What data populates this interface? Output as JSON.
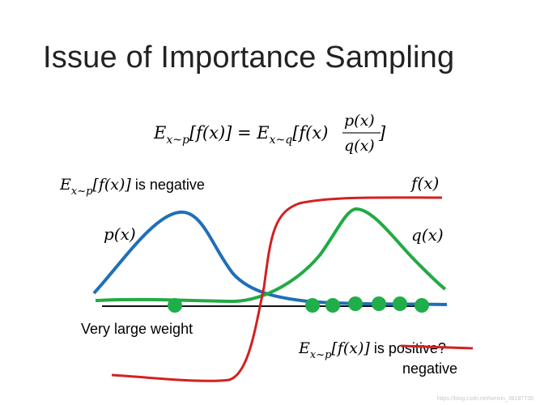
{
  "slide": {
    "title": "Issue of Importance Sampling",
    "equation": {
      "lhs_E": "E",
      "lhs_sub": "x~p",
      "lhs_body": "[f(x)] = ",
      "rhs_E": "E",
      "rhs_sub": "x~q",
      "rhs_body": "[f(x)",
      "frac_num": "p(x)",
      "frac_den": "q(x)",
      "rhs_close": "]"
    },
    "label_top": {
      "E": "E",
      "sub": "x~p",
      "body": "[f(x)]",
      "text": " is negative"
    },
    "label_fx": "f(x)",
    "label_px": "p(x)",
    "label_qx": "q(x)",
    "label_weight": "Very large weight",
    "label_bottom": {
      "E": "E",
      "sub": "x~p",
      "body": "[f(x)]",
      "text_is": " is ",
      "struck": "positive?",
      "correction": "negative"
    },
    "colors": {
      "p_curve": "#1f6fb8",
      "q_curve": "#22aa44",
      "f_curve": "#d42020",
      "samples": "#1fae4a",
      "axis": "#111111"
    },
    "watermark": "https://blog.csdn.net/weixin_38187735"
  }
}
